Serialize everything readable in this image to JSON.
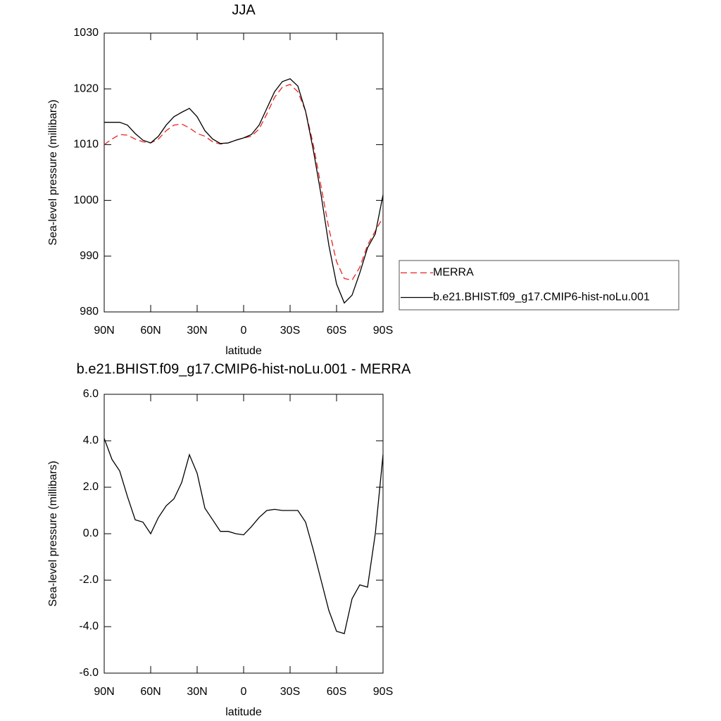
{
  "chart_data": [
    {
      "type": "line",
      "title": "JJA",
      "xlabel": "latitude",
      "ylabel": "Sea-level pressure (millibars)",
      "x": [
        90,
        85,
        80,
        75,
        70,
        65,
        60,
        55,
        50,
        45,
        40,
        35,
        30,
        25,
        20,
        15,
        10,
        5,
        0,
        -5,
        -10,
        -15,
        -20,
        -25,
        -30,
        -35,
        -40,
        -45,
        -50,
        -55,
        -60,
        -65,
        -70,
        -75,
        -80,
        -85,
        -90
      ],
      "xlim": [
        90,
        -90
      ],
      "xticks": [
        {
          "value": 90,
          "label": "90N"
        },
        {
          "value": 60,
          "label": "60N"
        },
        {
          "value": 30,
          "label": "30N"
        },
        0,
        {
          "value": -30,
          "label": "30S"
        },
        {
          "value": -60,
          "label": "60S"
        },
        {
          "value": -90,
          "label": "90S"
        }
      ],
      "ylim": [
        980,
        1030
      ],
      "yticks": [
        980,
        990,
        1000,
        1010,
        1020,
        1030
      ],
      "legend": "right",
      "series": [
        {
          "name": "MERRA",
          "color": "#e8231f",
          "line_style": "dashed",
          "values": [
            1010,
            1011,
            1011.8,
            1011.7,
            1011,
            1010.5,
            1010.3,
            1011,
            1012.5,
            1013.5,
            1013.7,
            1013,
            1012,
            1011.5,
            1010.5,
            1010.1,
            1010.3,
            1010.8,
            1011.2,
            1011.5,
            1012.8,
            1015.5,
            1018.5,
            1020.3,
            1020.8,
            1019.5,
            1016,
            1010,
            1002.5,
            995,
            989,
            986,
            985.7,
            988,
            992,
            994.5,
            997
          ]
        },
        {
          "name": "b.e21.BHIST.f09_g17.CMIP6-hist-noLu.001",
          "color": "#000000",
          "line_style": "solid",
          "values": [
            1014,
            1014,
            1014,
            1013.5,
            1012,
            1010.8,
            1010.3,
            1011.5,
            1013.5,
            1015,
            1015.8,
            1016.5,
            1015,
            1012.5,
            1011,
            1010.2,
            1010.3,
            1010.8,
            1011.2,
            1011.8,
            1013.5,
            1016.5,
            1019.5,
            1021.3,
            1021.8,
            1020.5,
            1016,
            1009,
            1001,
            992,
            985,
            981.6,
            983,
            987,
            991.5,
            994,
            1001
          ]
        }
      ]
    },
    {
      "type": "line",
      "title": "b.e21.BHIST.f09_g17.CMIP6-hist-noLu.001 - MERRA",
      "xlabel": "latitude",
      "ylabel": "Sea-level pressure (millibars)",
      "x": [
        90,
        85,
        80,
        75,
        70,
        65,
        60,
        55,
        50,
        45,
        40,
        35,
        30,
        25,
        20,
        15,
        10,
        5,
        0,
        -5,
        -10,
        -15,
        -20,
        -25,
        -30,
        -35,
        -40,
        -45,
        -50,
        -55,
        -60,
        -65,
        -70,
        -75,
        -80,
        -85,
        -90
      ],
      "xlim": [
        90,
        -90
      ],
      "xticks": [
        {
          "value": 90,
          "label": "90N"
        },
        {
          "value": 60,
          "label": "60N"
        },
        {
          "value": 30,
          "label": "30N"
        },
        0,
        {
          "value": -30,
          "label": "30S"
        },
        {
          "value": -60,
          "label": "60S"
        },
        {
          "value": -90,
          "label": "90S"
        }
      ],
      "ylim": [
        -6,
        6
      ],
      "yticks": [
        {
          "value": -6,
          "label": "-6.0"
        },
        {
          "value": -4,
          "label": "-4.0"
        },
        {
          "value": -2,
          "label": "-2.0"
        },
        {
          "value": 0,
          "label": "0.0"
        },
        {
          "value": 2,
          "label": "2.0"
        },
        {
          "value": 4,
          "label": "4.0"
        },
        {
          "value": 6,
          "label": "6.0"
        }
      ],
      "series": [
        {
          "color": "#000000",
          "line_style": "solid",
          "values": [
            4.1,
            3.2,
            2.7,
            1.6,
            0.6,
            0.5,
            0.0,
            0.7,
            1.2,
            1.5,
            2.2,
            3.4,
            2.6,
            1.1,
            0.6,
            0.1,
            0.1,
            0.0,
            -0.05,
            0.3,
            0.7,
            1.0,
            1.05,
            1.0,
            1.0,
            1.0,
            0.5,
            -0.7,
            -2.0,
            -3.3,
            -4.2,
            -4.3,
            -2.8,
            -2.2,
            -2.3,
            0.0,
            3.4
          ]
        }
      ]
    }
  ]
}
